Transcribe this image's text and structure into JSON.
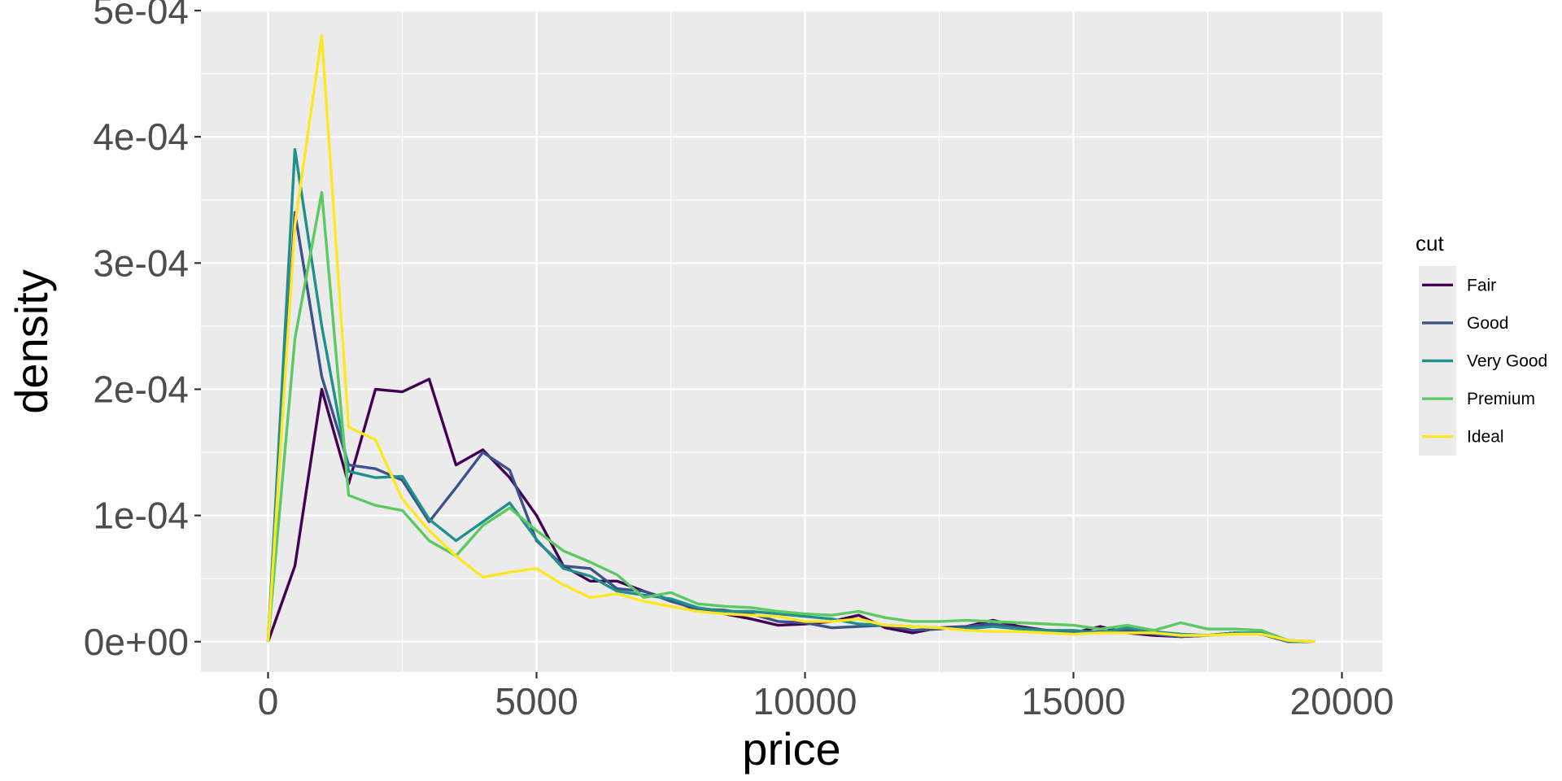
{
  "chart_data": {
    "type": "line",
    "xlabel": "price",
    "ylabel": "density",
    "xlim": [
      -1250,
      20750
    ],
    "ylim": [
      -2.4e-05,
      0.0005
    ],
    "x_ticks": [
      0,
      5000,
      10000,
      15000,
      20000
    ],
    "x_tick_labels": [
      "0",
      "5000",
      "10000",
      "15000",
      "20000"
    ],
    "y_ticks": [
      0,
      0.0001,
      0.0002,
      0.0003,
      0.0004,
      0.0005
    ],
    "y_tick_labels": [
      "0e+00",
      "1e-04",
      "2e-04",
      "3e-04",
      "4e-04",
      "5e-04"
    ],
    "grid": true,
    "legend": {
      "title": "cut",
      "position": "right"
    },
    "x": [
      0,
      500,
      1000,
      1500,
      2000,
      2500,
      3000,
      3500,
      4000,
      4500,
      5000,
      5500,
      6000,
      6500,
      7000,
      7500,
      8000,
      8500,
      9000,
      9500,
      10000,
      10500,
      11000,
      11500,
      12000,
      12500,
      13000,
      13500,
      14000,
      14500,
      15000,
      15500,
      16000,
      16500,
      17000,
      17500,
      18000,
      18500,
      19000,
      19500
    ],
    "series": [
      {
        "name": "Fair",
        "color": "#440154",
        "values": [
          0,
          6e-05,
          0.0002,
          0.000125,
          0.0002,
          0.000198,
          0.000208,
          0.00014,
          0.000152,
          0.00013,
          0.0001,
          6e-05,
          4.8e-05,
          4.8e-05,
          4e-05,
          3.3e-05,
          2.5e-05,
          2.2e-05,
          1.8e-05,
          1.3e-05,
          1.4e-05,
          1.6e-05,
          2.1e-05,
          1.1e-05,
          7e-06,
          1.1e-05,
          1.2e-05,
          1.7e-05,
          1.2e-05,
          9e-06,
          7e-06,
          1.2e-05,
          7e-06,
          5e-06,
          4e-06,
          5e-06,
          7e-06,
          6e-06,
          0,
          0
        ]
      },
      {
        "name": "Good",
        "color": "#3B528B",
        "values": [
          0,
          0.00034,
          0.00021,
          0.00014,
          0.000137,
          0.000128,
          9.5e-05,
          0.000122,
          0.00015,
          0.000136,
          8e-05,
          6e-05,
          5.8e-05,
          4.2e-05,
          4e-05,
          3.2e-05,
          2.6e-05,
          2.5e-05,
          2.2e-05,
          1.6e-05,
          1.5e-05,
          1.1e-05,
          1.2e-05,
          1.3e-05,
          9e-06,
          1e-05,
          1.2e-05,
          1.4e-05,
          1.1e-05,
          9e-06,
          8e-06,
          8e-06,
          9e-06,
          6e-06,
          4e-06,
          5e-06,
          7e-06,
          6e-06,
          1e-06,
          0
        ]
      },
      {
        "name": "Very Good",
        "color": "#21908C",
        "values": [
          0,
          0.00039,
          0.00025,
          0.000135,
          0.00013,
          0.000131,
          9.7e-05,
          8e-05,
          9.5e-05,
          0.00011,
          8.1e-05,
          5.8e-05,
          5.2e-05,
          4e-05,
          3.7e-05,
          3.4e-05,
          2.7e-05,
          2.4e-05,
          2.4e-05,
          2.2e-05,
          2e-05,
          1.8e-05,
          1.4e-05,
          1.3e-05,
          1.2e-05,
          1.1e-05,
          1e-05,
          1.2e-05,
          1e-05,
          9e-06,
          9e-06,
          7e-06,
          1.1e-05,
          8e-06,
          6e-06,
          5e-06,
          7e-06,
          7e-06,
          0,
          0
        ]
      },
      {
        "name": "Premium",
        "color": "#5DC963",
        "values": [
          0,
          0.00024,
          0.000356,
          0.000116,
          0.000108,
          0.000104,
          8e-05,
          6.8e-05,
          9.2e-05,
          0.000106,
          8.8e-05,
          7.2e-05,
          6.3e-05,
          5.3e-05,
          3.5e-05,
          3.9e-05,
          3e-05,
          2.8e-05,
          2.7e-05,
          2.4e-05,
          2.2e-05,
          2.1e-05,
          2.4e-05,
          1.9e-05,
          1.6e-05,
          1.6e-05,
          1.7e-05,
          1.6e-05,
          1.5e-05,
          1.4e-05,
          1.3e-05,
          1e-05,
          1.3e-05,
          9e-06,
          1.5e-05,
          1e-05,
          1e-05,
          9e-06,
          1e-06,
          0
        ]
      },
      {
        "name": "Ideal",
        "color": "#FDE725",
        "values": [
          0,
          0.00033,
          0.00048,
          0.00017,
          0.00016,
          0.000113,
          8.8e-05,
          6.8e-05,
          5.1e-05,
          5.5e-05,
          5.8e-05,
          4.5e-05,
          3.5e-05,
          3.8e-05,
          3.2e-05,
          2.8e-05,
          2.4e-05,
          2.2e-05,
          2.1e-05,
          2e-05,
          1.6e-05,
          1.6e-05,
          1.8e-05,
          1.3e-05,
          1.2e-05,
          1.1e-05,
          9e-06,
          8e-06,
          8e-06,
          7e-06,
          6e-06,
          7e-06,
          7e-06,
          7e-06,
          5e-06,
          5e-06,
          6e-06,
          6e-06,
          1e-06,
          0
        ]
      }
    ]
  }
}
